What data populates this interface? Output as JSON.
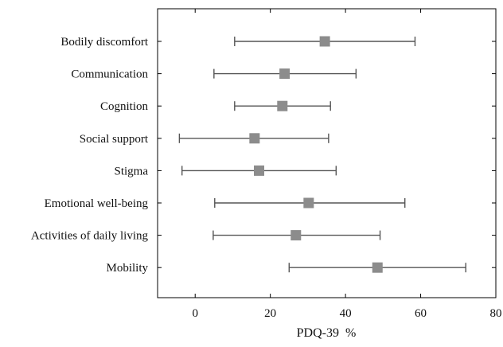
{
  "chart_data": {
    "type": "scatter",
    "subtype": "forest-plot-errorbars",
    "xlabel": "PDQ-39  %",
    "ylabel": "",
    "xlim": [
      -10,
      80
    ],
    "xticks": [
      0,
      20,
      40,
      60,
      80
    ],
    "grid": false,
    "marker": "square",
    "colors": {
      "marker": "#8c8c8c",
      "whisker": "#555555",
      "axis": "#000000"
    },
    "categories": [
      "Bodily discomfort",
      "Communication",
      "Cognition",
      "Social support",
      "Stigma",
      "Emotional well-being",
      "Activities of daily living",
      "Mobility"
    ],
    "series": [
      {
        "points": [
          {
            "category": "Bodily discomfort",
            "mean": 34.5,
            "low": 10.5,
            "high": 58.5
          },
          {
            "category": "Communication",
            "mean": 23.8,
            "low": 5.0,
            "high": 42.8
          },
          {
            "category": "Cognition",
            "mean": 23.2,
            "low": 10.5,
            "high": 36.0
          },
          {
            "category": "Social support",
            "mean": 15.8,
            "low": -4.2,
            "high": 35.5
          },
          {
            "category": "Stigma",
            "mean": 17.0,
            "low": -3.5,
            "high": 37.5
          },
          {
            "category": "Emotional well-being",
            "mean": 30.2,
            "low": 5.2,
            "high": 55.8
          },
          {
            "category": "Activities of daily living",
            "mean": 26.8,
            "low": 4.8,
            "high": 49.2
          },
          {
            "category": "Mobility",
            "mean": 48.5,
            "low": 25.0,
            "high": 72.0
          }
        ]
      }
    ]
  }
}
